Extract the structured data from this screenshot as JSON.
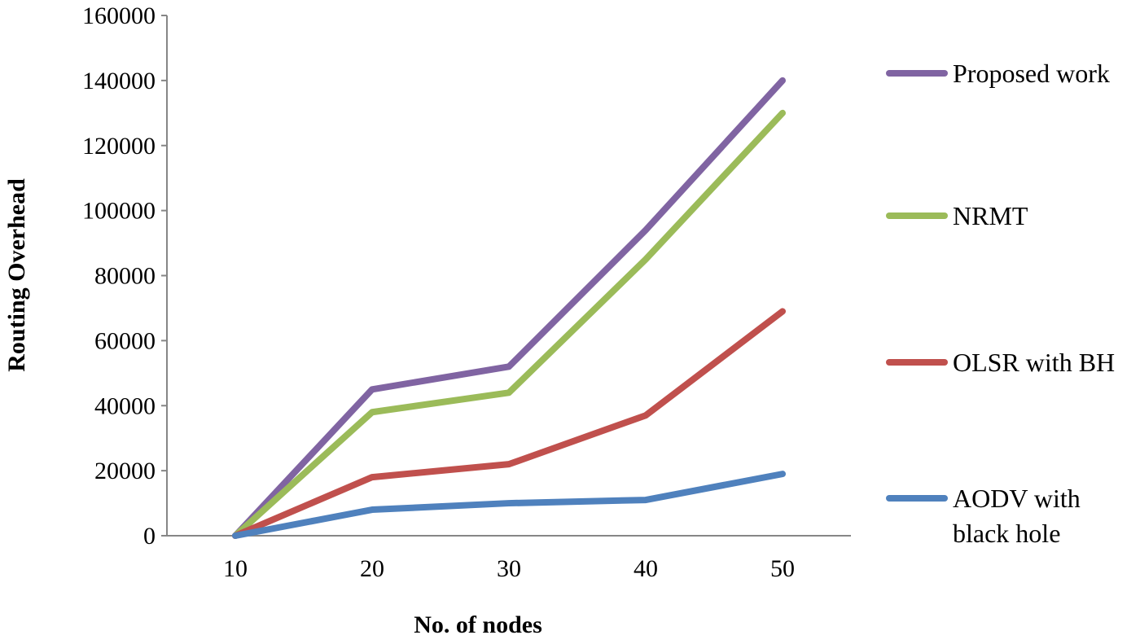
{
  "chart_data": {
    "type": "line",
    "title": "",
    "xlabel": "No. of nodes",
    "ylabel": "Routing Overhead",
    "categories": [
      "10",
      "20",
      "30",
      "40",
      "50"
    ],
    "ylim": [
      0,
      160000
    ],
    "yticks": [
      "0",
      "20000",
      "40000",
      "60000",
      "80000",
      "100000",
      "120000",
      "140000",
      "160000"
    ],
    "grid": false,
    "legend_position": "right",
    "series": [
      {
        "name": "Proposed work",
        "name_lines": [
          "Proposed work"
        ],
        "color": "#8064A2",
        "values": [
          0,
          45000,
          52000,
          94000,
          140000
        ]
      },
      {
        "name": "NRMT",
        "name_lines": [
          "NRMT"
        ],
        "color": "#9BBB59",
        "values": [
          0,
          38000,
          44000,
          85000,
          130000
        ]
      },
      {
        "name": "OLSR with BH",
        "name_lines": [
          "OLSR with BH"
        ],
        "color": "#C0504D",
        "values": [
          0,
          18000,
          22000,
          37000,
          69000
        ]
      },
      {
        "name": "AODV with black hole",
        "name_lines": [
          "AODV with",
          "black hole"
        ],
        "color": "#4F81BD",
        "values": [
          0,
          8000,
          10000,
          11000,
          19000
        ]
      }
    ]
  }
}
